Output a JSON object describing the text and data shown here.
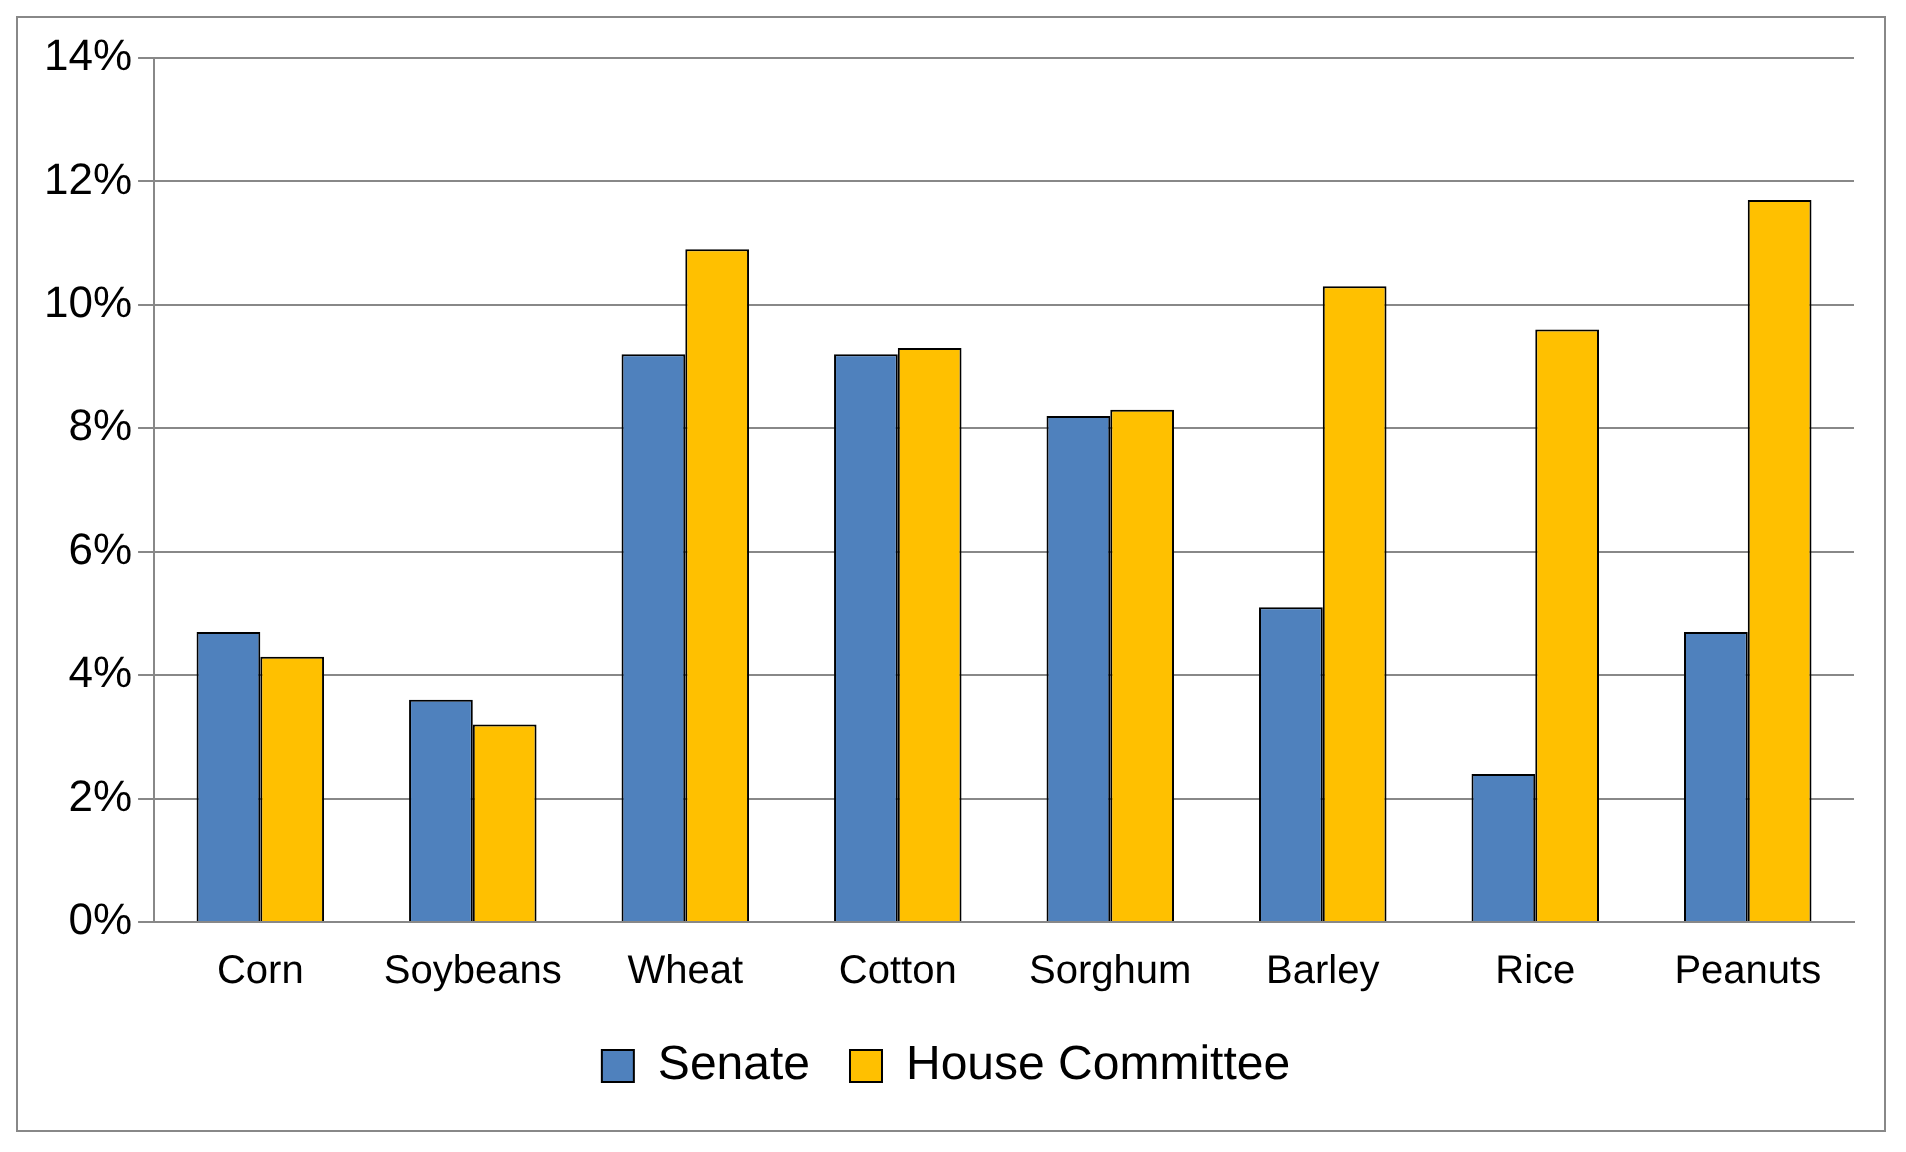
{
  "chart_data": {
    "type": "bar",
    "categories": [
      "Corn",
      "Soybeans",
      "Wheat",
      "Cotton",
      "Sorghum",
      "Barley",
      "Rice",
      "Peanuts"
    ],
    "series": [
      {
        "name": "Senate",
        "color": "#4f81bd",
        "values": [
          4.7,
          3.6,
          9.2,
          9.2,
          8.2,
          5.1,
          2.4,
          4.7
        ]
      },
      {
        "name": "House Committee",
        "color": "#ffc000",
        "values": [
          4.3,
          3.2,
          10.9,
          9.3,
          8.3,
          10.3,
          9.6,
          11.7
        ]
      }
    ],
    "ylim": [
      0,
      14
    ],
    "yticks": [
      {
        "value": 0,
        "label": "0%"
      },
      {
        "value": 2,
        "label": "2%"
      },
      {
        "value": 4,
        "label": "4%"
      },
      {
        "value": 6,
        "label": "6%"
      },
      {
        "value": 8,
        "label": "8%"
      },
      {
        "value": 10,
        "label": "10%"
      },
      {
        "value": 12,
        "label": "12%"
      },
      {
        "value": 14,
        "label": "14%"
      }
    ],
    "grid": "y",
    "legend": "bottom"
  }
}
